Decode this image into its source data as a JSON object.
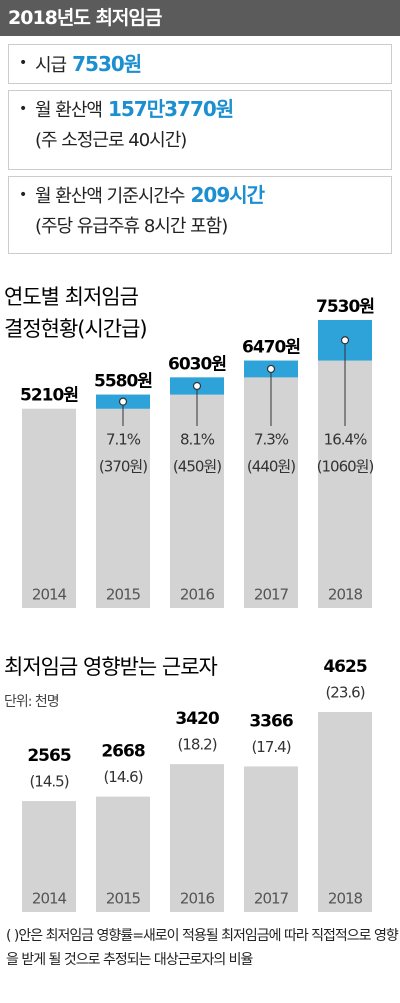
{
  "header": {
    "title": "2018년도 최저임금"
  },
  "bullets": [
    {
      "text": "시급",
      "highlight": "7530원"
    },
    {
      "text": "월 환산액",
      "highlight": "157만3770원",
      "note": "(주 소정근로 40시간)"
    },
    {
      "text": "월 환산액 기준시간수",
      "highlight": "209시간",
      "note": "(주당 유급주휴 8시간 포함)"
    }
  ],
  "chart_data": [
    {
      "type": "bar",
      "title": [
        "연도별 최저임금",
        "결정현황(시간급)"
      ],
      "categories": [
        "2014",
        "2015",
        "2016",
        "2017",
        "2018"
      ],
      "values": [
        5210,
        5580,
        6030,
        6470,
        7530
      ],
      "value_labels": [
        "5210원",
        "5580원",
        "6030원",
        "6470원",
        "7530원"
      ],
      "color": "#d3d3d3",
      "increase": {
        "values": [
          null,
          370,
          450,
          440,
          1060
        ],
        "value_labels": [
          null,
          "(370원)",
          "(450원)",
          "(440원)",
          "(1060원)"
        ],
        "color": "#2ea3da"
      },
      "increase_rate": {
        "values": [
          null,
          7.1,
          8.1,
          7.3,
          16.4
        ],
        "value_labels": [
          null,
          "7.1%",
          "8.1%",
          "7.3%",
          "16.4%"
        ]
      }
    },
    {
      "type": "bar",
      "title": [
        "최저임금 영향받는 근로자"
      ],
      "subtitle": "단위: 천명",
      "categories": [
        "2014",
        "2015",
        "2016",
        "2017",
        "2018"
      ],
      "values": [
        2565,
        2668,
        3420,
        3366,
        4625
      ],
      "color": "#d3d3d3",
      "share": {
        "values": [
          14.5,
          14.6,
          18.2,
          17.4,
          23.6
        ],
        "value_labels": [
          "(14.5)",
          "(14.6)",
          "(18.2)",
          "(17.4)",
          "(23.6)"
        ]
      }
    }
  ],
  "footnote": "(  )안은 최저임금 영향률=새로이 적용될 최저임금에 따라 직접적으로 영향을 받게 될 것으로 추정되는 대상근로자의 비율"
}
